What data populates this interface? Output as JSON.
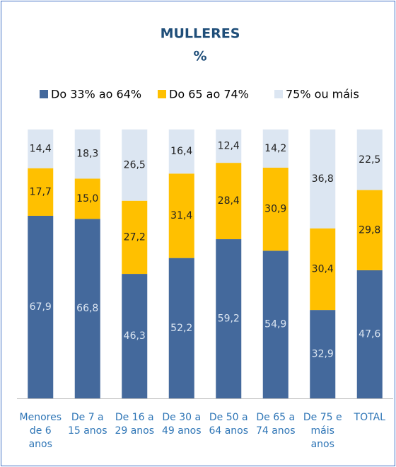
{
  "chart_data": {
    "type": "stacked_bar",
    "title": "MULLERES",
    "subtitle": "%",
    "categories": [
      "Menores de 6 anos",
      "De 7 a 15 anos",
      "De 16 a 29 anos",
      "De 30 a 49 anos",
      "De 50 a 64 anos",
      "De 65 a 74 anos",
      "De 75 e máis anos",
      "TOTAL"
    ],
    "series": [
      {
        "name": "Do 33% ao 64%",
        "color": "#44699c",
        "values": [
          67.9,
          66.8,
          46.3,
          52.2,
          59.2,
          54.9,
          32.9,
          47.6
        ],
        "value_labels": [
          "67,9",
          "66,8",
          "46,3",
          "52,2",
          "59,2",
          "54,9",
          "32,9",
          "47,6"
        ]
      },
      {
        "name": "Do 65 ao 74%",
        "color": "#ffc000",
        "values": [
          17.7,
          15.0,
          27.2,
          31.4,
          28.4,
          30.9,
          30.4,
          29.8
        ],
        "value_labels": [
          "17,7",
          "15,0",
          "27,2",
          "31,4",
          "28,4",
          "30,9",
          "30,4",
          "29,8"
        ]
      },
      {
        "name": "75% ou máis",
        "color": "#dce6f2",
        "values": [
          14.4,
          18.3,
          26.5,
          16.4,
          12.4,
          14.2,
          36.8,
          22.5
        ],
        "value_labels": [
          "14,4",
          "18,3",
          "26,5",
          "16,4",
          "12,4",
          "14,2",
          "36,8",
          "22,5"
        ]
      }
    ],
    "legend": "top"
  }
}
